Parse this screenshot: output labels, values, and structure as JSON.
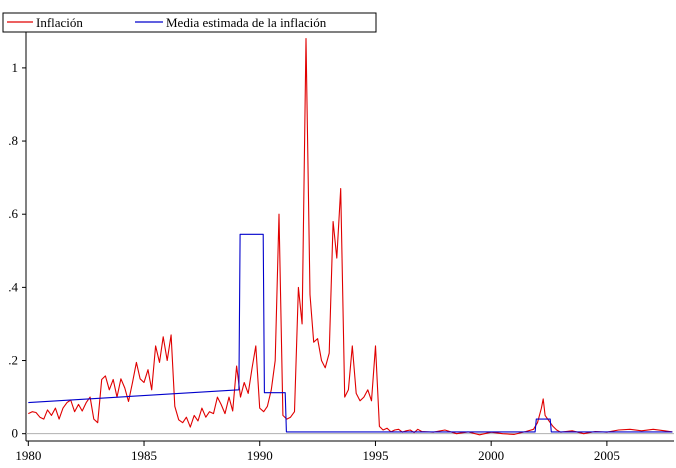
{
  "chart_data": {
    "type": "line",
    "title": "",
    "xlabel": "",
    "ylabel": "",
    "xlim": [
      1979.9,
      2007.9
    ],
    "ylim": [
      -0.02,
      1.12
    ],
    "x_ticks": [
      {
        "value": 1980,
        "label": "1980"
      },
      {
        "value": 1985,
        "label": "1985"
      },
      {
        "value": 1990,
        "label": "1990"
      },
      {
        "value": 1995,
        "label": "1995"
      },
      {
        "value": 2000,
        "label": "2000"
      },
      {
        "value": 2005,
        "label": "2005"
      }
    ],
    "y_ticks": [
      {
        "value": 0,
        "label": "0"
      },
      {
        "value": 0.2,
        "label": ".2"
      },
      {
        "value": 0.4,
        "label": ".4"
      },
      {
        "value": 0.6,
        "label": ".6"
      },
      {
        "value": 0.8,
        "label": ".8"
      },
      {
        "value": 1.0,
        "label": "1"
      }
    ],
    "zero_line": true,
    "legend_position": "top-left",
    "series": [
      {
        "name": "Inflación",
        "color": "#e00000",
        "points": [
          [
            1980.0,
            0.055
          ],
          [
            1980.17,
            0.06
          ],
          [
            1980.33,
            0.058
          ],
          [
            1980.5,
            0.045
          ],
          [
            1980.67,
            0.04
          ],
          [
            1980.83,
            0.065
          ],
          [
            1981.0,
            0.05
          ],
          [
            1981.17,
            0.07
          ],
          [
            1981.33,
            0.04
          ],
          [
            1981.5,
            0.07
          ],
          [
            1981.67,
            0.085
          ],
          [
            1981.83,
            0.092
          ],
          [
            1982.0,
            0.06
          ],
          [
            1982.17,
            0.08
          ],
          [
            1982.33,
            0.062
          ],
          [
            1982.5,
            0.085
          ],
          [
            1982.67,
            0.1
          ],
          [
            1982.83,
            0.04
          ],
          [
            1983.0,
            0.03
          ],
          [
            1983.17,
            0.148
          ],
          [
            1983.33,
            0.158
          ],
          [
            1983.5,
            0.12
          ],
          [
            1983.67,
            0.148
          ],
          [
            1983.83,
            0.1
          ],
          [
            1984.0,
            0.15
          ],
          [
            1984.17,
            0.125
          ],
          [
            1984.33,
            0.088
          ],
          [
            1984.5,
            0.14
          ],
          [
            1984.67,
            0.195
          ],
          [
            1984.83,
            0.15
          ],
          [
            1985.0,
            0.14
          ],
          [
            1985.17,
            0.175
          ],
          [
            1985.33,
            0.12
          ],
          [
            1985.5,
            0.24
          ],
          [
            1985.67,
            0.195
          ],
          [
            1985.83,
            0.265
          ],
          [
            1986.0,
            0.2
          ],
          [
            1986.17,
            0.27
          ],
          [
            1986.33,
            0.075
          ],
          [
            1986.5,
            0.038
          ],
          [
            1986.67,
            0.03
          ],
          [
            1986.83,
            0.045
          ],
          [
            1987.0,
            0.018
          ],
          [
            1987.17,
            0.05
          ],
          [
            1987.33,
            0.035
          ],
          [
            1987.5,
            0.07
          ],
          [
            1987.67,
            0.045
          ],
          [
            1987.83,
            0.06
          ],
          [
            1988.0,
            0.055
          ],
          [
            1988.17,
            0.1
          ],
          [
            1988.33,
            0.08
          ],
          [
            1988.5,
            0.055
          ],
          [
            1988.67,
            0.1
          ],
          [
            1988.83,
            0.062
          ],
          [
            1989.0,
            0.185
          ],
          [
            1989.17,
            0.1
          ],
          [
            1989.33,
            0.14
          ],
          [
            1989.5,
            0.11
          ],
          [
            1989.67,
            0.18
          ],
          [
            1989.83,
            0.24
          ],
          [
            1990.0,
            0.07
          ],
          [
            1990.17,
            0.06
          ],
          [
            1990.33,
            0.075
          ],
          [
            1990.5,
            0.12
          ],
          [
            1990.67,
            0.2
          ],
          [
            1990.83,
            0.6
          ],
          [
            1991.0,
            0.05
          ],
          [
            1991.17,
            0.04
          ],
          [
            1991.33,
            0.045
          ],
          [
            1991.5,
            0.06
          ],
          [
            1991.67,
            0.4
          ],
          [
            1991.83,
            0.3
          ],
          [
            1992.0,
            1.08
          ],
          [
            1992.17,
            0.38
          ],
          [
            1992.33,
            0.25
          ],
          [
            1992.5,
            0.26
          ],
          [
            1992.67,
            0.2
          ],
          [
            1992.83,
            0.18
          ],
          [
            1993.0,
            0.22
          ],
          [
            1993.17,
            0.58
          ],
          [
            1993.33,
            0.48
          ],
          [
            1993.5,
            0.67
          ],
          [
            1993.67,
            0.1
          ],
          [
            1993.83,
            0.12
          ],
          [
            1994.0,
            0.24
          ],
          [
            1994.17,
            0.11
          ],
          [
            1994.33,
            0.09
          ],
          [
            1994.5,
            0.1
          ],
          [
            1994.67,
            0.12
          ],
          [
            1994.83,
            0.09
          ],
          [
            1995.0,
            0.24
          ],
          [
            1995.17,
            0.02
          ],
          [
            1995.33,
            0.01
          ],
          [
            1995.5,
            0.015
          ],
          [
            1995.67,
            0.005
          ],
          [
            1995.83,
            0.01
          ],
          [
            1996.0,
            0.012
          ],
          [
            1996.17,
            0.004
          ],
          [
            1996.33,
            0.008
          ],
          [
            1996.5,
            0.01
          ],
          [
            1996.67,
            0.003
          ],
          [
            1996.83,
            0.012
          ],
          [
            1997.0,
            0.006
          ],
          [
            1997.5,
            0.004
          ],
          [
            1998.0,
            0.01
          ],
          [
            1998.5,
            0.0
          ],
          [
            1999.0,
            0.005
          ],
          [
            1999.5,
            -0.003
          ],
          [
            2000.0,
            0.004
          ],
          [
            2000.5,
            0.0
          ],
          [
            2001.0,
            -0.002
          ],
          [
            2001.5,
            0.006
          ],
          [
            2001.83,
            0.012
          ],
          [
            2002.0,
            0.03
          ],
          [
            2002.17,
            0.07
          ],
          [
            2002.25,
            0.095
          ],
          [
            2002.33,
            0.05
          ],
          [
            2002.5,
            0.035
          ],
          [
            2002.67,
            0.02
          ],
          [
            2002.83,
            0.01
          ],
          [
            2003.0,
            0.004
          ],
          [
            2003.5,
            0.008
          ],
          [
            2004.0,
            0.0
          ],
          [
            2004.5,
            0.006
          ],
          [
            2005.0,
            0.004
          ],
          [
            2005.5,
            0.01
          ],
          [
            2006.0,
            0.012
          ],
          [
            2006.5,
            0.008
          ],
          [
            2007.0,
            0.012
          ],
          [
            2007.5,
            0.008
          ],
          [
            2007.83,
            0.005
          ]
        ]
      },
      {
        "name": "Media estimada de la inflación",
        "color": "#0000cc",
        "points": [
          [
            1980.0,
            0.085
          ],
          [
            1989.1,
            0.12
          ],
          [
            1989.15,
            0.545
          ],
          [
            1990.15,
            0.545
          ],
          [
            1990.2,
            0.112
          ],
          [
            1991.1,
            0.112
          ],
          [
            1991.15,
            0.005
          ],
          [
            2001.9,
            0.005
          ],
          [
            2001.95,
            0.04
          ],
          [
            2002.55,
            0.04
          ],
          [
            2002.6,
            0.005
          ],
          [
            2007.83,
            0.005
          ]
        ]
      }
    ]
  }
}
